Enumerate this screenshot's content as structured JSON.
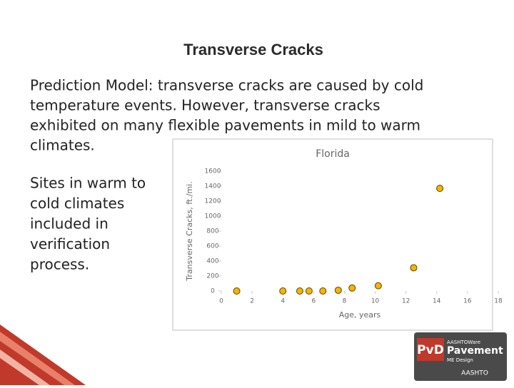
{
  "slide": {
    "title": "Transverse Cracks",
    "body_lines": [
      "Prediction Model: transverse cracks are caused by cold",
      "temperature events.  However, transverse cracks",
      "exhibited on many flexible pavements in mild to warm",
      "climates."
    ],
    "side_lines": [
      "Sites in warm to",
      "cold climates",
      "included in",
      "verification",
      "process."
    ],
    "logo": {
      "mark": "PvD",
      "brand": "AASHTOWare",
      "product": "Pavement",
      "sub": "ME Design",
      "org": "AASHTO"
    }
  },
  "chart_data": {
    "type": "scatter",
    "title": "Florida",
    "x_label": "Age, years",
    "y_label": "Transverse Cracks, ft./mi.",
    "x": [
      1.0,
      4.0,
      5.1,
      5.7,
      6.6,
      7.6,
      8.5,
      10.2,
      12.5,
      14.2
    ],
    "values": [
      0,
      0,
      0,
      0,
      0,
      10,
      40,
      70,
      310,
      1370
    ],
    "color": "#f5b400",
    "xlim": [
      0,
      18
    ],
    "xticks": [
      0,
      2,
      4,
      6,
      8,
      10,
      12,
      14,
      16,
      18
    ],
    "ylim": [
      0,
      1600
    ],
    "yticks": [
      0,
      200,
      400,
      600,
      800,
      1000,
      1200,
      1400,
      1600
    ]
  }
}
